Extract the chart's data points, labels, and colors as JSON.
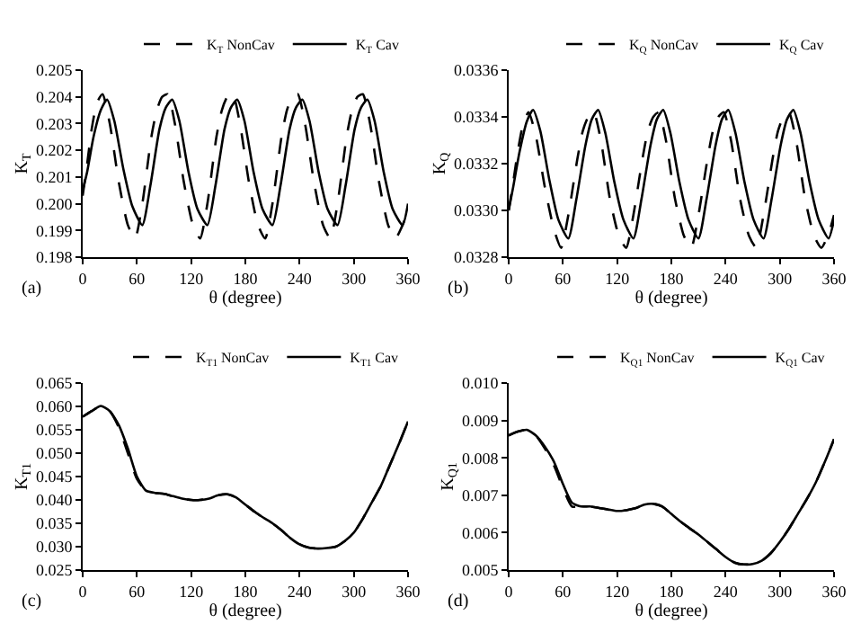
{
  "chart_data": [
    {
      "type": "line",
      "xlabel": "θ (degree)",
      "ylabel": "K$_{T}$",
      "annotations": [
        "(a)"
      ],
      "legend": "top right",
      "grid": false,
      "xlim": [
        0,
        360
      ],
      "xticks": [
        0,
        60,
        120,
        180,
        240,
        300,
        360
      ],
      "ylim": [
        0.198,
        0.205
      ],
      "yticks": [
        {
          "value": 0.198,
          "label": "0.198"
        },
        {
          "value": 0.199,
          "label": "0.199"
        },
        {
          "value": 0.2,
          "label": "0.200"
        },
        {
          "value": 0.201,
          "label": "0.201"
        },
        {
          "value": 0.202,
          "label": "0.202"
        },
        {
          "value": 0.203,
          "label": "0.203"
        },
        {
          "value": 0.204,
          "label": "0.204"
        },
        {
          "value": 0.205,
          "label": "0.205"
        }
      ],
      "series": [
        {
          "name": "K$_{T}$ NonCav",
          "color": "#000000",
          "line_style": "dashed",
          "x": [
            0,
            5,
            10,
            16,
            22,
            30,
            40,
            50,
            58,
            66,
            76,
            82,
            88,
            94,
            102,
            112,
            122,
            130,
            138,
            148,
            154,
            160,
            166,
            174,
            184,
            194,
            202,
            210,
            220,
            226,
            232,
            238,
            246,
            256,
            266,
            274,
            282,
            292,
            298,
            304,
            310,
            318,
            328,
            338,
            346,
            354,
            360
          ],
          "values": [
            0.2003,
            0.2015,
            0.2028,
            0.2038,
            0.2041,
            0.203,
            0.2008,
            0.1992,
            0.1987,
            0.2,
            0.2025,
            0.2035,
            0.204,
            0.2041,
            0.203,
            0.2008,
            0.1992,
            0.1987,
            0.2,
            0.2025,
            0.2035,
            0.204,
            0.2041,
            0.203,
            0.2008,
            0.1992,
            0.1987,
            0.2,
            0.2025,
            0.2035,
            0.204,
            0.2041,
            0.203,
            0.2008,
            0.1992,
            0.1987,
            0.2,
            0.2025,
            0.2035,
            0.204,
            0.2041,
            0.203,
            0.2008,
            0.1992,
            0.1987,
            0.1992,
            0.1998
          ]
        },
        {
          "name": "K$_{T}$ Cav",
          "color": "#000000",
          "line_style": "solid",
          "x": [
            0,
            5,
            12,
            20,
            27,
            35,
            45,
            55,
            66,
            75,
            85,
            92,
            99,
            107,
            117,
            127,
            138,
            147,
            157,
            164,
            171,
            179,
            189,
            199,
            210,
            219,
            229,
            236,
            243,
            251,
            261,
            271,
            282,
            291,
            301,
            308,
            315,
            323,
            333,
            343,
            354,
            360
          ],
          "values": [
            0.2005,
            0.2012,
            0.2025,
            0.2035,
            0.2039,
            0.2031,
            0.2013,
            0.1999,
            0.1992,
            0.2007,
            0.2028,
            0.2036,
            0.2039,
            0.2031,
            0.2012,
            0.1998,
            0.1992,
            0.2007,
            0.2028,
            0.2036,
            0.2039,
            0.2031,
            0.2012,
            0.1998,
            0.1992,
            0.2007,
            0.2028,
            0.2036,
            0.2039,
            0.2031,
            0.2012,
            0.1998,
            0.1992,
            0.2007,
            0.2028,
            0.2036,
            0.2039,
            0.2031,
            0.2012,
            0.1998,
            0.1992,
            0.2
          ]
        }
      ]
    },
    {
      "type": "line",
      "xlabel": "θ (degree)",
      "ylabel": "K$_{Q}$",
      "annotations": [
        "(b)"
      ],
      "legend": "top right",
      "grid": false,
      "xlim": [
        0,
        360
      ],
      "xticks": [
        0,
        60,
        120,
        180,
        240,
        300,
        360
      ],
      "ylim": [
        0.0328,
        0.0336
      ],
      "yticks": [
        {
          "value": 0.0328,
          "label": "0.0328"
        },
        {
          "value": 0.033,
          "label": "0.0330"
        },
        {
          "value": 0.0332,
          "label": "0.0332"
        },
        {
          "value": 0.0334,
          "label": "0.0334"
        },
        {
          "value": 0.0336,
          "label": "0.0336"
        }
      ],
      "series": [
        {
          "name": "K$_{Q}$ NonCav",
          "color": "#000000",
          "line_style": "dashed",
          "x": [
            0,
            5,
            10,
            16,
            22,
            30,
            40,
            50,
            58,
            66,
            76,
            82,
            88,
            94,
            102,
            112,
            122,
            130,
            138,
            148,
            154,
            160,
            166,
            174,
            184,
            194,
            202,
            210,
            220,
            226,
            232,
            238,
            246,
            256,
            266,
            274,
            282,
            292,
            298,
            304,
            310,
            318,
            328,
            338,
            346,
            354,
            360
          ],
          "values": [
            0.033,
            0.03312,
            0.03325,
            0.03337,
            0.03342,
            0.03332,
            0.0331,
            0.03292,
            0.03284,
            0.03298,
            0.03322,
            0.03334,
            0.0334,
            0.03342,
            0.0333,
            0.03305,
            0.03289,
            0.03284,
            0.03298,
            0.03322,
            0.03334,
            0.0334,
            0.03342,
            0.0333,
            0.03305,
            0.03289,
            0.03284,
            0.03298,
            0.03322,
            0.03334,
            0.0334,
            0.03342,
            0.0333,
            0.03305,
            0.03289,
            0.03284,
            0.03298,
            0.03322,
            0.03334,
            0.0334,
            0.03342,
            0.0333,
            0.03305,
            0.03289,
            0.03284,
            0.0329,
            0.03298
          ]
        },
        {
          "name": "K$_{Q}$ Cav",
          "color": "#000000",
          "line_style": "solid",
          "x": [
            0,
            5,
            12,
            20,
            27,
            35,
            45,
            55,
            66,
            75,
            85,
            92,
            99,
            107,
            117,
            127,
            138,
            147,
            157,
            164,
            171,
            179,
            189,
            199,
            210,
            219,
            229,
            236,
            243,
            251,
            261,
            271,
            282,
            291,
            301,
            308,
            315,
            323,
            333,
            343,
            354,
            360
          ],
          "values": [
            0.033,
            0.0331,
            0.03325,
            0.03338,
            0.03343,
            0.03334,
            0.03313,
            0.03296,
            0.03288,
            0.03305,
            0.03328,
            0.03339,
            0.03343,
            0.03333,
            0.03312,
            0.03296,
            0.03288,
            0.03305,
            0.03328,
            0.03339,
            0.03343,
            0.03333,
            0.03312,
            0.03296,
            0.03288,
            0.03305,
            0.03328,
            0.03339,
            0.03343,
            0.03333,
            0.03312,
            0.03296,
            0.03288,
            0.03305,
            0.03328,
            0.03339,
            0.03343,
            0.03333,
            0.03312,
            0.03296,
            0.03288,
            0.03296
          ]
        }
      ]
    },
    {
      "type": "line",
      "xlabel": "θ (degree)",
      "ylabel": "K$_{T1}$",
      "annotations": [
        "(c)"
      ],
      "legend": "top right",
      "grid": false,
      "xlim": [
        0,
        360
      ],
      "xticks": [
        0,
        60,
        120,
        180,
        240,
        300,
        360
      ],
      "ylim": [
        0.025,
        0.065
      ],
      "yticks": [
        {
          "value": 0.025,
          "label": "0.025"
        },
        {
          "value": 0.03,
          "label": "0.030"
        },
        {
          "value": 0.035,
          "label": "0.035"
        },
        {
          "value": 0.04,
          "label": "0.040"
        },
        {
          "value": 0.045,
          "label": "0.045"
        },
        {
          "value": 0.05,
          "label": "0.050"
        },
        {
          "value": 0.055,
          "label": "0.055"
        },
        {
          "value": 0.06,
          "label": "0.060"
        },
        {
          "value": 0.065,
          "label": "0.065"
        }
      ],
      "x": [
        0,
        10,
        20,
        30,
        40,
        50,
        60,
        70,
        80,
        90,
        100,
        110,
        120,
        130,
        140,
        150,
        160,
        170,
        180,
        190,
        200,
        210,
        220,
        230,
        240,
        250,
        260,
        270,
        280,
        290,
        300,
        310,
        320,
        330,
        340,
        350,
        360
      ],
      "series": [
        {
          "name": "K$_{T1}$ NonCav",
          "color": "#000000",
          "line_style": "dashed",
          "values": [
            0.0578,
            0.059,
            0.0601,
            0.059,
            0.0555,
            0.05,
            0.0445,
            0.042,
            0.0415,
            0.0413,
            0.0408,
            0.0403,
            0.04,
            0.04,
            0.0403,
            0.041,
            0.0412,
            0.0405,
            0.039,
            0.0375,
            0.0362,
            0.035,
            0.0335,
            0.0318,
            0.0305,
            0.0298,
            0.0296,
            0.0297,
            0.03,
            0.0312,
            0.033,
            0.036,
            0.0395,
            0.043,
            0.0475,
            0.052,
            0.0568
          ]
        },
        {
          "name": "K$_{T1}$ Cav",
          "color": "#000000",
          "line_style": "solid",
          "values": [
            0.0578,
            0.059,
            0.0601,
            0.059,
            0.056,
            0.051,
            0.045,
            0.042,
            0.0415,
            0.0413,
            0.0408,
            0.0403,
            0.04,
            0.04,
            0.0403,
            0.041,
            0.0412,
            0.0405,
            0.039,
            0.0375,
            0.0362,
            0.035,
            0.0335,
            0.0318,
            0.0305,
            0.0298,
            0.0296,
            0.0297,
            0.03,
            0.0312,
            0.033,
            0.036,
            0.0395,
            0.043,
            0.0475,
            0.052,
            0.0568
          ]
        }
      ]
    },
    {
      "type": "line",
      "xlabel": "θ (degree)",
      "ylabel": "K$_{Q1}$",
      "annotations": [
        "(d)"
      ],
      "legend": "top right",
      "grid": false,
      "xlim": [
        0,
        360
      ],
      "xticks": [
        0,
        60,
        120,
        180,
        240,
        300,
        360
      ],
      "ylim": [
        0.005,
        0.01
      ],
      "yticks": [
        {
          "value": 0.005,
          "label": "0.005"
        },
        {
          "value": 0.006,
          "label": "0.006"
        },
        {
          "value": 0.007,
          "label": "0.007"
        },
        {
          "value": 0.008,
          "label": "0.008"
        },
        {
          "value": 0.009,
          "label": "0.009"
        },
        {
          "value": 0.01,
          "label": "0.010"
        }
      ],
      "x": [
        0,
        10,
        20,
        30,
        40,
        50,
        60,
        70,
        80,
        90,
        100,
        110,
        120,
        130,
        140,
        150,
        160,
        170,
        180,
        190,
        200,
        210,
        220,
        230,
        240,
        250,
        260,
        270,
        280,
        290,
        300,
        310,
        320,
        330,
        340,
        350,
        360
      ],
      "series": [
        {
          "name": "K$_{Q1}$ NonCav",
          "color": "#000000",
          "line_style": "dashed",
          "values": [
            0.0086,
            0.0087,
            0.00875,
            0.0086,
            0.00825,
            0.0078,
            0.0072,
            0.0067,
            0.0067,
            0.0067,
            0.00666,
            0.00662,
            0.00658,
            0.0066,
            0.00665,
            0.00675,
            0.00677,
            0.0067,
            0.0065,
            0.0063,
            0.00612,
            0.00595,
            0.00575,
            0.00555,
            0.00535,
            0.0052,
            0.00515,
            0.00516,
            0.00525,
            0.00545,
            0.00575,
            0.0061,
            0.0065,
            0.0069,
            0.00735,
            0.0079,
            0.0085
          ]
        },
        {
          "name": "K$_{Q1}$ Cav",
          "color": "#000000",
          "line_style": "solid",
          "values": [
            0.0086,
            0.0087,
            0.00875,
            0.0086,
            0.0083,
            0.0079,
            0.0073,
            0.0068,
            0.0067,
            0.0067,
            0.00666,
            0.00662,
            0.00658,
            0.0066,
            0.00665,
            0.00675,
            0.00677,
            0.0067,
            0.0065,
            0.0063,
            0.00612,
            0.00595,
            0.00575,
            0.00555,
            0.00535,
            0.0052,
            0.00515,
            0.00516,
            0.00525,
            0.00545,
            0.00575,
            0.0061,
            0.0065,
            0.0069,
            0.00735,
            0.0079,
            0.0085
          ]
        }
      ]
    }
  ]
}
